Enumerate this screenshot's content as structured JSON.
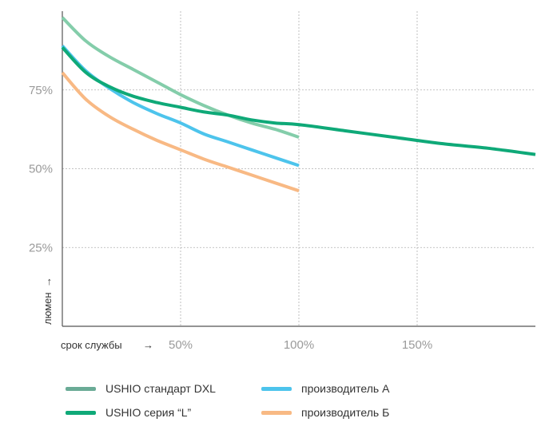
{
  "chart_data": {
    "type": "line",
    "xlabel": "срок службы",
    "ylabel": "люмен",
    "xlim": [
      0,
      200
    ],
    "ylim": [
      0,
      100
    ],
    "x_ticks": [
      {
        "value": 50,
        "label": "50%"
      },
      {
        "value": 100,
        "label": "100%"
      },
      {
        "value": 150,
        "label": "150%"
      }
    ],
    "y_ticks": [
      {
        "value": 75,
        "label": "75%"
      },
      {
        "value": 50,
        "label": "50%"
      },
      {
        "value": 25,
        "label": "25%"
      }
    ],
    "grid": true,
    "series": [
      {
        "name": "USHIO стандарт DXL",
        "color": "#84cdaa",
        "x": [
          0,
          10,
          20,
          30,
          40,
          50,
          60,
          70,
          80,
          90,
          100
        ],
        "values": [
          98,
          90.5,
          85.5,
          81.5,
          77.5,
          73.5,
          70,
          67,
          64.5,
          62.5,
          60
        ]
      },
      {
        "name": "производитель А",
        "color": "#4dc4ec",
        "x": [
          0,
          10,
          20,
          30,
          40,
          50,
          60,
          70,
          80,
          90,
          100
        ],
        "values": [
          89,
          81,
          75.5,
          71,
          67.5,
          64.5,
          61,
          58.5,
          56,
          53.5,
          51
        ]
      },
      {
        "name": "USHIO серия “L”",
        "color": "#0fa978",
        "x": [
          0,
          10,
          20,
          30,
          40,
          50,
          60,
          70,
          80,
          90,
          100,
          120,
          140,
          160,
          180,
          200
        ],
        "values": [
          88.5,
          80.5,
          76,
          73,
          71,
          69.5,
          68,
          67,
          65.5,
          64.5,
          64,
          62,
          60,
          58,
          56.5,
          54.5
        ]
      },
      {
        "name": "производитель Б",
        "color": "#f8b984",
        "x": [
          0,
          10,
          20,
          30,
          40,
          50,
          60,
          70,
          80,
          90,
          100
        ],
        "values": [
          80.5,
          72,
          66.5,
          62.5,
          59,
          56,
          53,
          50.5,
          48,
          45.5,
          43
        ]
      }
    ]
  },
  "legend": [
    {
      "label": "USHIO стандарт DXL",
      "color": "#6aab96"
    },
    {
      "label": "производитель А",
      "color": "#4dc4ec"
    },
    {
      "label": "USHIO серия “L”",
      "color": "#0fa978"
    },
    {
      "label": "производитель Б",
      "color": "#f8b984"
    }
  ],
  "colors": {
    "grid": "#b0b0b0",
    "axis": "#555555",
    "tick_text": "#9a9a9a"
  }
}
